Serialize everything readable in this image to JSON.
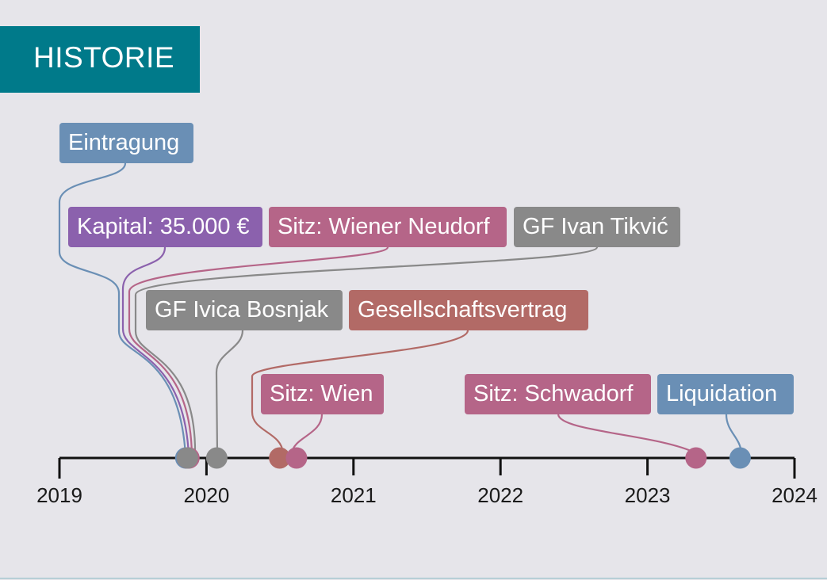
{
  "header": {
    "title": "HISTORIE"
  },
  "colors": {
    "blue": "#6a8fb5",
    "purple": "#8b61ad",
    "pink": "#b56588",
    "gray": "#898989",
    "brown": "#b26a66",
    "header_teal": "#007a8a"
  },
  "axis": {
    "years": [
      "2019",
      "2020",
      "2021",
      "2022",
      "2023",
      "2024"
    ],
    "start": 2019,
    "end": 2024
  },
  "events": [
    {
      "label": "Eintragung",
      "color": "blue",
      "date": 2019.87
    },
    {
      "label": "Kapital: 35.000 €",
      "color": "purple",
      "date": 2019.87
    },
    {
      "label": "Sitz: Wiener Neudorf",
      "color": "pink",
      "date": 2019.87
    },
    {
      "label": "GF Ivan Tikvić",
      "color": "gray",
      "date": 2019.87
    },
    {
      "label": "GF Ivica Bosnjak",
      "color": "gray",
      "date": 2020.07
    },
    {
      "label": "Gesellschaftsvertrag",
      "color": "brown",
      "date": 2020.53
    },
    {
      "label": "Sitz: Wien",
      "color": "pink",
      "date": 2020.58
    },
    {
      "label": "Sitz: Schwadorf",
      "color": "pink",
      "date": 2023.33
    },
    {
      "label": "Liquidation",
      "color": "blue",
      "date": 2023.63
    }
  ]
}
